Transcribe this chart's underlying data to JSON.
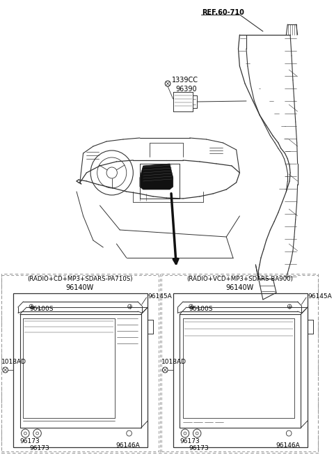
{
  "bg_color": "#ffffff",
  "lc": "#333333",
  "tc": "#000000",
  "ref_label": "REF.60-710",
  "part_1339CC": "1339CC",
  "part_96390": "96390",
  "part_96140W_left": "96140W",
  "part_96140W_right": "96140W",
  "label_left_title": "(RADIO+CD+MP3+SDARS-PA710S)",
  "label_right_title": "(RADIO+VCD+MP3+SDARS-BA900)",
  "label_96145A_L": "96145A",
  "label_96100S_L": "96100S",
  "label_1018AD_L": "1018AD",
  "label_96173_L1": "96173",
  "label_96173_L2": "96173",
  "label_96146A_L": "96146A",
  "label_96145A_R": "96145A",
  "label_96100S_R": "96100S",
  "label_1018AD_R": "1018AD",
  "label_96173_R1": "96173",
  "label_96173_R2": "96173",
  "label_96146A_R": "96146A"
}
